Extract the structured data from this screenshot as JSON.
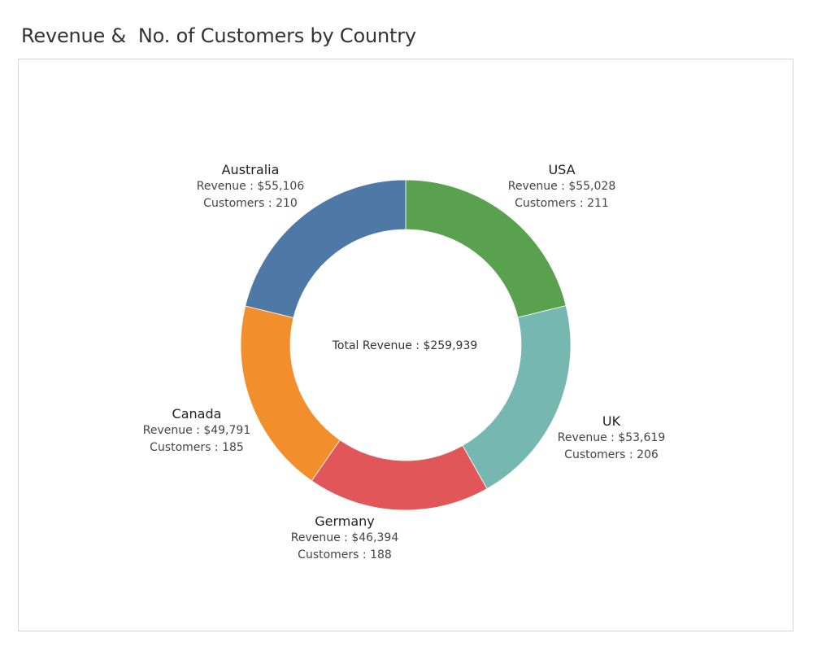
{
  "chart_data": {
    "type": "pie",
    "variant": "donut",
    "title": "Revenue &  No. of Customers by Country",
    "center_label": "Total Revenue : $259,939",
    "revenue_prefix": "Revenue : ",
    "customers_prefix": "Customers : ",
    "slices": [
      {
        "name": "USA",
        "revenue": 55028,
        "revenue_text": "$55,028",
        "customers": 211,
        "color": "#59a14f"
      },
      {
        "name": "UK",
        "revenue": 53619,
        "revenue_text": "$53,619",
        "customers": 206,
        "color": "#76b7b2"
      },
      {
        "name": "Germany",
        "revenue": 46394,
        "revenue_text": "$46,394",
        "customers": 188,
        "color": "#e15759"
      },
      {
        "name": "Canada",
        "revenue": 49791,
        "revenue_text": "$49,791",
        "customers": 185,
        "color": "#f28e2b"
      },
      {
        "name": "Australia",
        "revenue": 55106,
        "revenue_text": "$55,106",
        "customers": 210,
        "color": "#4e79a7"
      }
    ]
  }
}
